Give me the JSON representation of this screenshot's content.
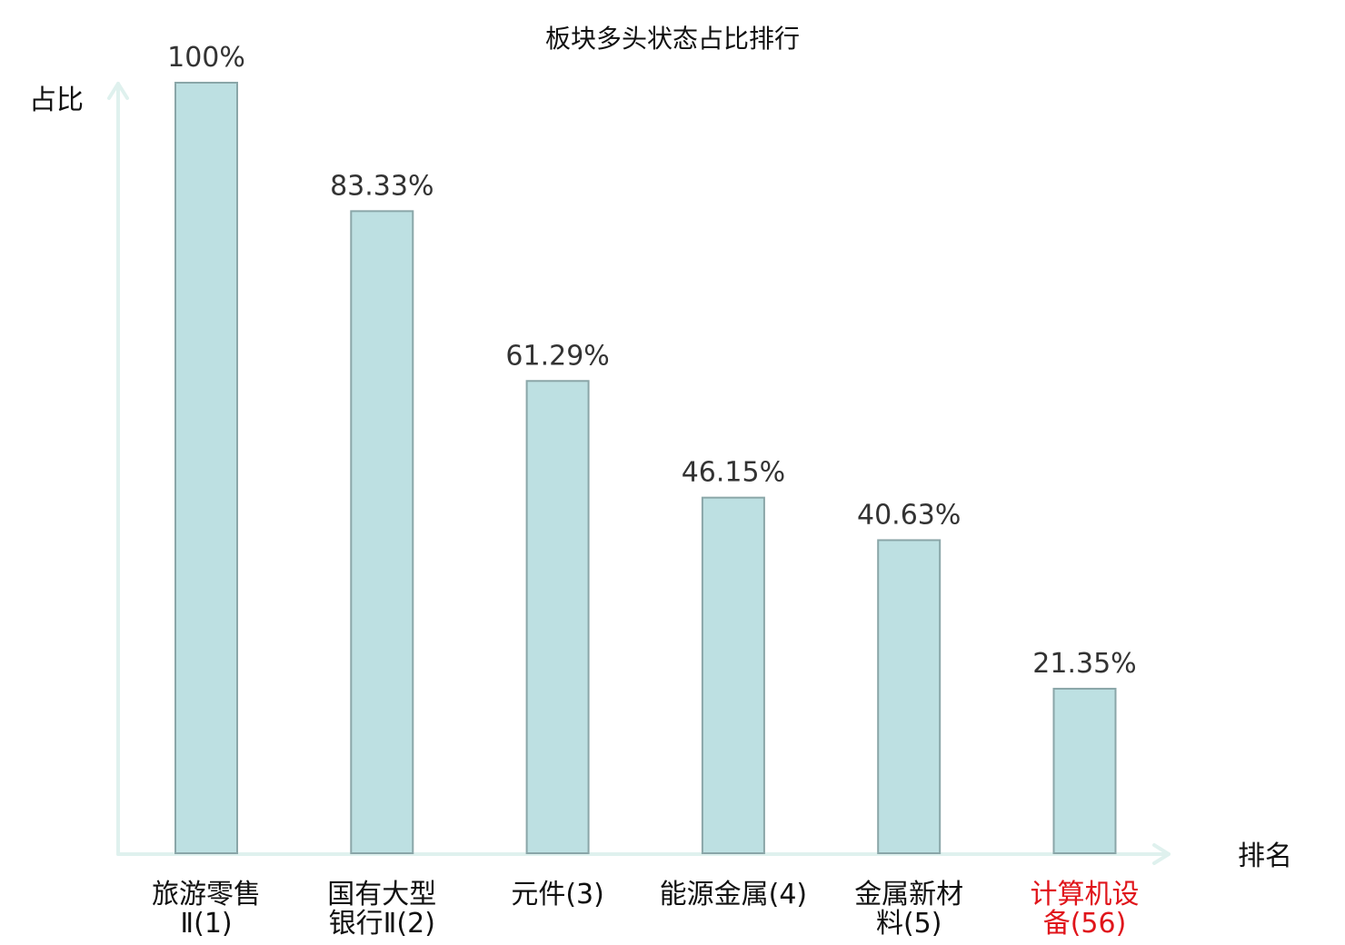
{
  "chart_data": {
    "type": "bar",
    "title": "板块多头状态占比排行",
    "ylabel": "占比",
    "xlabel": "排名",
    "ylim": [
      0,
      100
    ],
    "grid": false,
    "categories": [
      {
        "name_lines": [
          "旅游零售",
          "Ⅱ"
        ],
        "rank": "(1)",
        "highlight": false
      },
      {
        "name_lines": [
          "国有大型",
          "银行Ⅱ"
        ],
        "rank": "(2)",
        "highlight": false
      },
      {
        "name_lines": [
          "元件"
        ],
        "rank": "(3)",
        "highlight": false
      },
      {
        "name_lines": [
          "能源金属"
        ],
        "rank": "(4)",
        "highlight": false
      },
      {
        "name_lines": [
          "金属新材",
          "料"
        ],
        "rank": "(5)",
        "highlight": false
      },
      {
        "name_lines": [
          "计算机设",
          "备"
        ],
        "rank": "(56)",
        "highlight": true
      }
    ],
    "values": [
      100,
      83.33,
      61.29,
      46.15,
      40.63,
      21.35
    ],
    "value_labels": [
      "100%",
      "83.33%",
      "61.29%",
      "46.15%",
      "40.63%",
      "21.35%"
    ]
  },
  "colors": {
    "bar_fill": "#bde0e2",
    "bar_stroke": "#8aa6a8",
    "axis": "#dff1ee",
    "text": "#111111",
    "value_text": "#333333",
    "highlight": "#e0151b"
  }
}
